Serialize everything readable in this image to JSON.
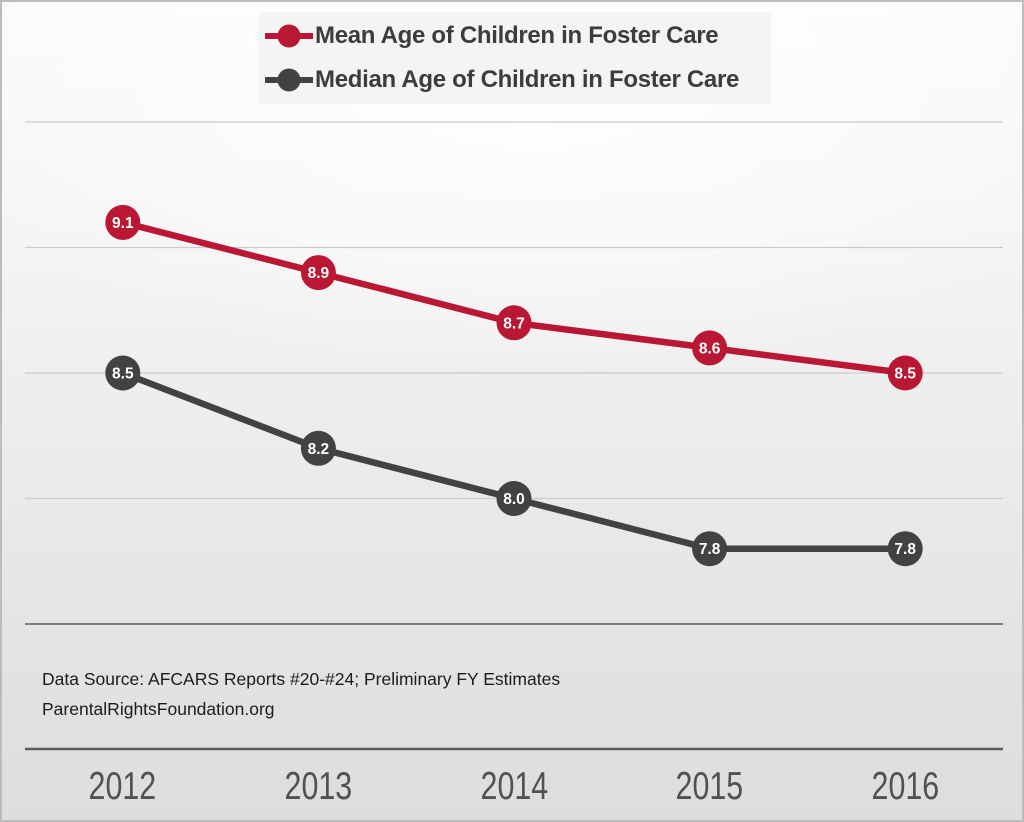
{
  "legend": {
    "items": [
      {
        "label": "Mean Age of Children in Foster Care",
        "color": "#b91734"
      },
      {
        "label": "Median Age of Children in Foster Care",
        "color": "#424242"
      }
    ]
  },
  "chart_data": {
    "type": "line",
    "categories": [
      "2012",
      "2013",
      "2014",
      "2015",
      "2016"
    ],
    "series": [
      {
        "name": "Mean Age of Children in Foster Care",
        "color": "#b91734",
        "values": [
          9.1,
          8.9,
          8.7,
          8.6,
          8.5
        ]
      },
      {
        "name": "Median Age of Children in Foster Care",
        "color": "#424242",
        "values": [
          8.5,
          8.2,
          8.0,
          7.8,
          7.8
        ]
      }
    ],
    "ylim": [
      7.5,
      9.5
    ],
    "gridline_step": 0.5,
    "grid": "horizontal-only",
    "legend_position": "top-center",
    "data_labels": "inside-markers",
    "title": "",
    "xlabel": "",
    "ylabel": ""
  },
  "footer": {
    "source_line1": "Data Source: AFCARS Reports #20-#24; Preliminary FY Estimates",
    "source_line2": "ParentalRightsFoundation.org"
  },
  "colors": {
    "gridline_light": "#cbcbcb",
    "gridline_baseline": "#7f7f7f",
    "separator_line": "#5d5d5d",
    "marker_label_text": "#ffffff",
    "axis_label_text": "#515151"
  }
}
